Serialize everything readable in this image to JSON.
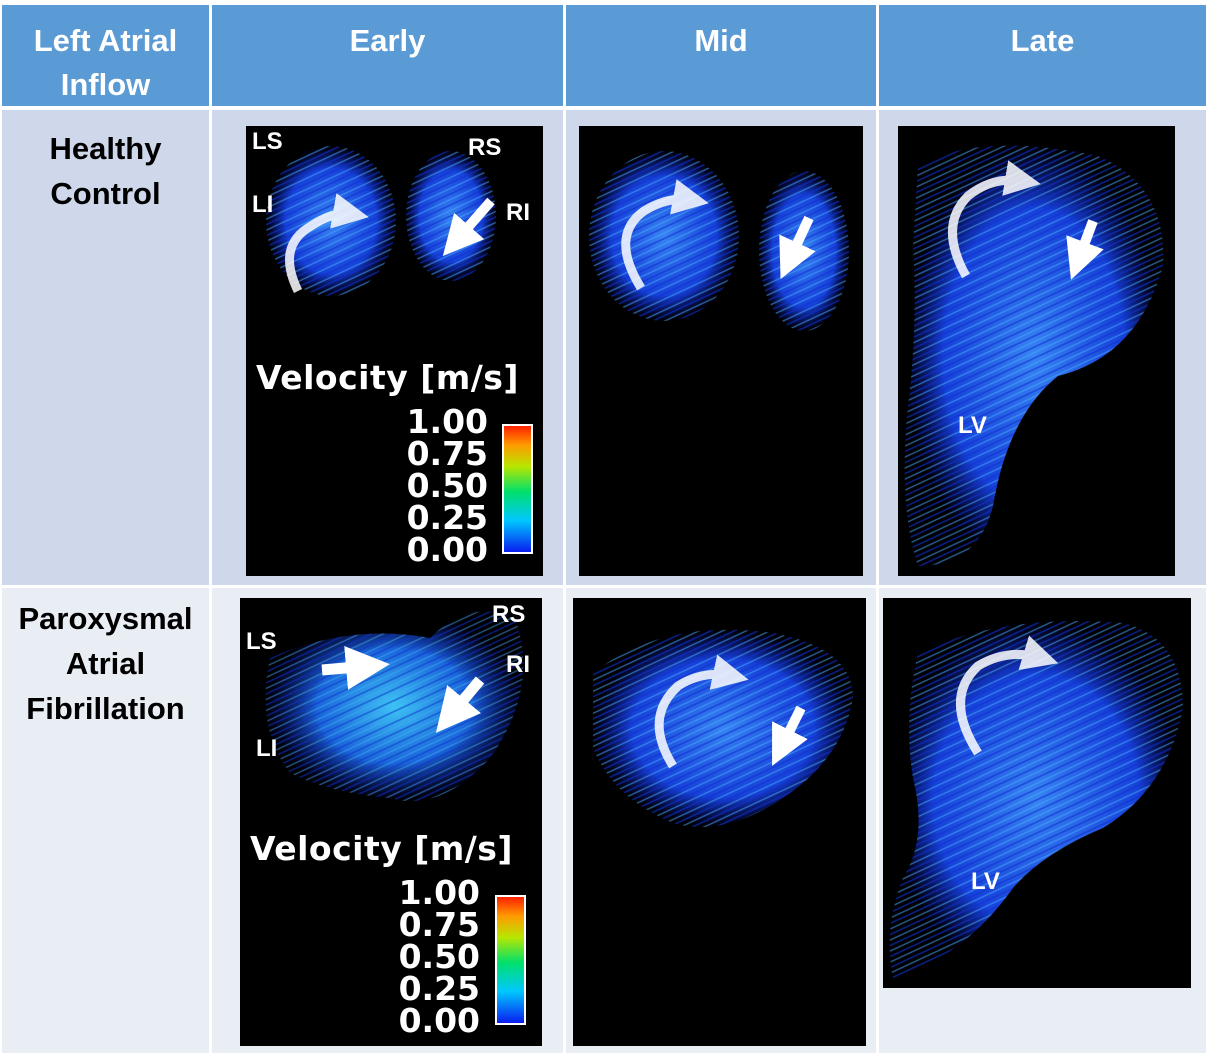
{
  "table": {
    "corner_header": [
      "Left Atrial",
      "Inflow"
    ],
    "columns": [
      "Early",
      "Mid",
      "Late"
    ],
    "rows": [
      {
        "label": [
          "Healthy",
          "Control"
        ]
      },
      {
        "label": [
          "Paroxysmal",
          "Atrial",
          "Fibrillation"
        ]
      }
    ]
  },
  "panel_labels": {
    "ls": "LS",
    "li": "LI",
    "rs": "RS",
    "ri": "RI",
    "lv": "LV"
  },
  "legend": {
    "title": "Velocity [m/s]",
    "ticks": [
      "1.00",
      "0.75",
      "0.50",
      "0.25",
      "0.00"
    ]
  },
  "colors": {
    "header_bg": "#5b9bd5",
    "row1_bg": "#cfd8ea",
    "row2_bg": "#e9edf4",
    "panel_bg": "#000000",
    "streamline": "#1a56ff"
  }
}
